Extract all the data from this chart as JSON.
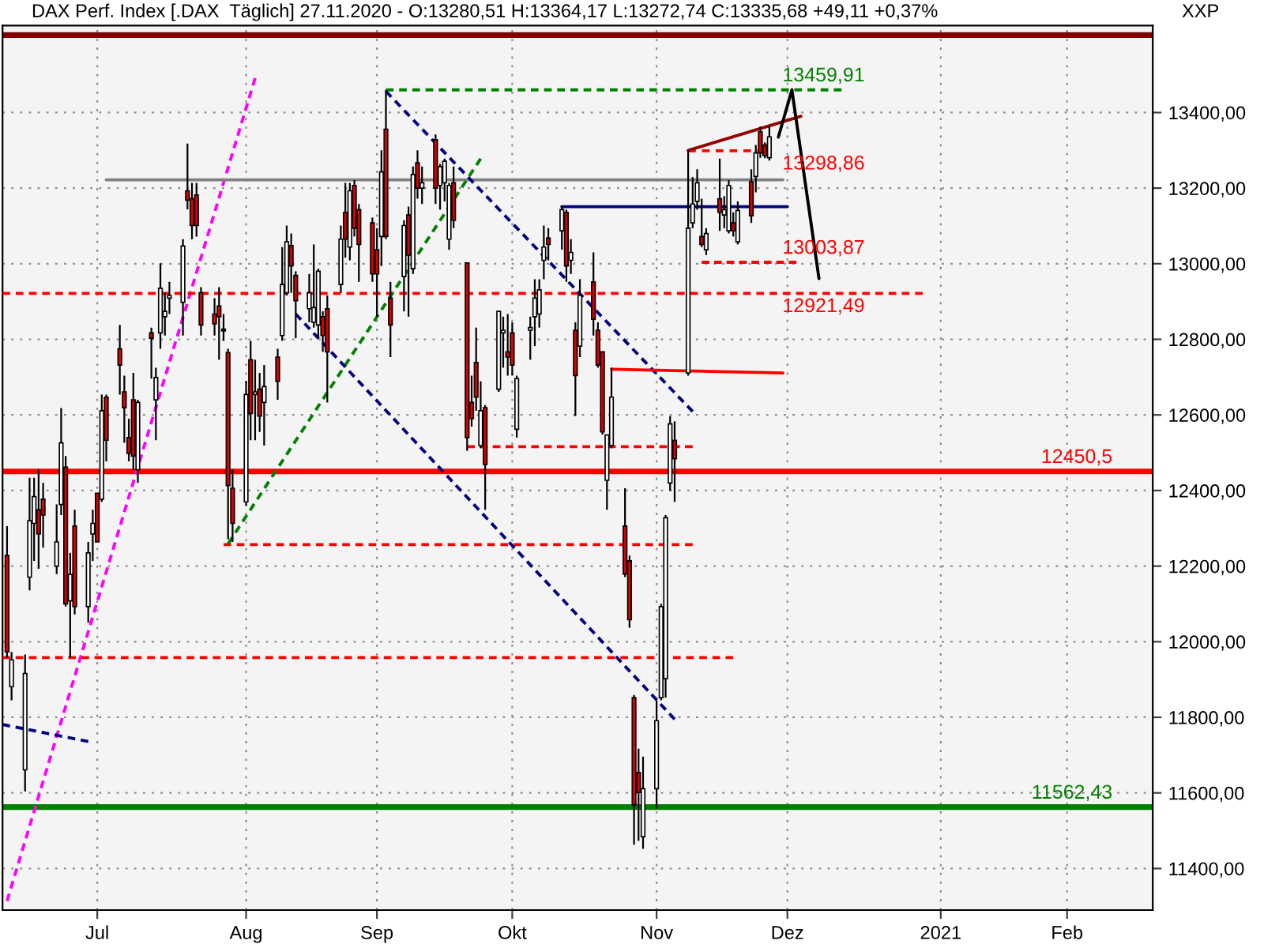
{
  "chart_data": {
    "type": "candlestick",
    "title": "DAX Perf. Index [.DAX  Täglich] 27.11.2020 - O:13280,51 H:13364,17 L:13272,74 C:13335,68 +49,11 +0,37%",
    "x": [
      "2020-06-11",
      "2020-06-12",
      "2020-06-15",
      "2020-06-16",
      "2020-06-17",
      "2020-06-18",
      "2020-06-19",
      "2020-06-22",
      "2020-06-23",
      "2020-06-24",
      "2020-06-25",
      "2020-06-26",
      "2020-06-29",
      "2020-06-30",
      "2020-07-01",
      "2020-07-02",
      "2020-07-03",
      "2020-07-06",
      "2020-07-07",
      "2020-07-08",
      "2020-07-09",
      "2020-07-10",
      "2020-07-13",
      "2020-07-14",
      "2020-07-15",
      "2020-07-16",
      "2020-07-17",
      "2020-07-20",
      "2020-07-21",
      "2020-07-22",
      "2020-07-23",
      "2020-07-24",
      "2020-07-27",
      "2020-07-28",
      "2020-07-29",
      "2020-07-30",
      "2020-07-31",
      "2020-08-03",
      "2020-08-04",
      "2020-08-05",
      "2020-08-06",
      "2020-08-07",
      "2020-08-10",
      "2020-08-11",
      "2020-08-12",
      "2020-08-13",
      "2020-08-14",
      "2020-08-17",
      "2020-08-18",
      "2020-08-19",
      "2020-08-20",
      "2020-08-21",
      "2020-08-24",
      "2020-08-25",
      "2020-08-26",
      "2020-08-27",
      "2020-08-28",
      "2020-08-31",
      "2020-09-01",
      "2020-09-02",
      "2020-09-03",
      "2020-09-04",
      "2020-09-07",
      "2020-09-08",
      "2020-09-09",
      "2020-09-10",
      "2020-09-11",
      "2020-09-14",
      "2020-09-15",
      "2020-09-16",
      "2020-09-17",
      "2020-09-18",
      "2020-09-21",
      "2020-09-22",
      "2020-09-23",
      "2020-09-24",
      "2020-09-25",
      "2020-09-28",
      "2020-09-29",
      "2020-09-30",
      "2020-10-01",
      "2020-10-02",
      "2020-10-05",
      "2020-10-06",
      "2020-10-07",
      "2020-10-08",
      "2020-10-09",
      "2020-10-12",
      "2020-10-13",
      "2020-10-14",
      "2020-10-15",
      "2020-10-16",
      "2020-10-19",
      "2020-10-20",
      "2020-10-21",
      "2020-10-22",
      "2020-10-23",
      "2020-10-26",
      "2020-10-27",
      "2020-10-28",
      "2020-10-29",
      "2020-10-30",
      "2020-11-02",
      "2020-11-03",
      "2020-11-04",
      "2020-11-05",
      "2020-11-06",
      "2020-11-09",
      "2020-11-10",
      "2020-11-11",
      "2020-11-12",
      "2020-11-13",
      "2020-11-16",
      "2020-11-17",
      "2020-11-18",
      "2020-11-19",
      "2020-11-20",
      "2020-11-23",
      "2020-11-24",
      "2020-11-25",
      "2020-11-26",
      "2020-11-27"
    ],
    "ohlc": [
      [
        12228,
        12306,
        11958,
        11973
      ],
      [
        11881,
        11973,
        11845,
        11952
      ],
      [
        11661,
        11966,
        11604,
        11916
      ],
      [
        12171,
        12434,
        12136,
        12320
      ],
      [
        12313,
        12434,
        12214,
        12384
      ],
      [
        12349,
        12455,
        12193,
        12285
      ],
      [
        12377,
        12420,
        12249,
        12335
      ],
      [
        12200,
        12363,
        12179,
        12264
      ],
      [
        12363,
        12618,
        12335,
        12526
      ],
      [
        12462,
        12491,
        12093,
        12100
      ],
      [
        12108,
        12235,
        11959,
        12178
      ],
      [
        12306,
        12349,
        12072,
        12093
      ],
      [
        12093,
        12264,
        12051,
        12235
      ],
      [
        12285,
        12349,
        12214,
        12313
      ],
      [
        12393,
        12393,
        12264,
        12264
      ],
      [
        12377,
        12654,
        12370,
        12611
      ],
      [
        12647,
        12654,
        12477,
        12533
      ],
      [
        12775,
        12838,
        12654,
        12732
      ],
      [
        12661,
        12704,
        12526,
        12619
      ],
      [
        12540,
        12590,
        12477,
        12498
      ],
      [
        12640,
        12711,
        12455,
        12491
      ],
      [
        12455,
        12640,
        12420,
        12633
      ],
      [
        12817,
        12831,
        12696,
        12803
      ],
      [
        12640,
        12725,
        12533,
        12699
      ],
      [
        12817,
        13001,
        12775,
        12935
      ],
      [
        12860,
        12923,
        12810,
        12874
      ],
      [
        12909,
        12952,
        12867,
        12916
      ],
      [
        12898,
        13065,
        12810,
        13047
      ],
      [
        13193,
        13318,
        13144,
        13168
      ],
      [
        13172,
        13214,
        13065,
        13101
      ],
      [
        13182,
        13214,
        13072,
        13101
      ],
      [
        12923,
        12938,
        12810,
        12838
      ],
      [
        12867,
        12909,
        12810,
        12841
      ],
      [
        12888,
        12938,
        12746,
        12860
      ],
      [
        12827,
        12867,
        12796,
        12822
      ],
      [
        12765,
        12775,
        12271,
        12413
      ],
      [
        12406,
        12455,
        12264,
        12313
      ],
      [
        12370,
        12690,
        12360,
        12654
      ],
      [
        12746,
        12796,
        12533,
        12604
      ],
      [
        12654,
        12746,
        12533,
        12661
      ],
      [
        12668,
        12711,
        12555,
        12597
      ],
      [
        12633,
        12732,
        12519,
        12675
      ],
      [
        12753,
        12775,
        12640,
        12689
      ],
      [
        12810,
        13044,
        12796,
        12945
      ],
      [
        12923,
        13101,
        12916,
        13058
      ],
      [
        13048,
        13080,
        12923,
        12994
      ],
      [
        12969,
        12980,
        12803,
        12902
      ],
      [
        12881,
        12973,
        12845,
        12923
      ],
      [
        12845,
        13051,
        12831,
        12884
      ],
      [
        12838,
        12987,
        12803,
        12980
      ],
      [
        12860,
        12874,
        12767,
        12810
      ],
      [
        12881,
        12916,
        12633,
        12767
      ],
      [
        12945,
        13101,
        12923,
        13065
      ],
      [
        13136,
        13214,
        13016,
        13065
      ],
      [
        13044,
        13214,
        13009,
        13193
      ],
      [
        13207,
        13221,
        13072,
        13094
      ],
      [
        13143,
        13158,
        12952,
        13051
      ],
      [
        13108,
        13122,
        12952,
        12973
      ],
      [
        13037,
        13094,
        12860,
        12973
      ],
      [
        13072,
        13300,
        12994,
        13243
      ],
      [
        13356,
        13460,
        13065,
        13072
      ],
      [
        12909,
        12952,
        12753,
        12838
      ],
      [
        12966,
        13115,
        12874,
        13101
      ],
      [
        13129,
        13151,
        12860,
        13023
      ],
      [
        12987,
        13257,
        12973,
        13236
      ],
      [
        13267,
        13300,
        13172,
        13200
      ],
      [
        13200,
        13257,
        13158,
        13214
      ],
      [
        13328,
        13342,
        13158,
        13200
      ],
      [
        13207,
        13264,
        13143,
        13257
      ],
      [
        13214,
        13278,
        13165,
        13271
      ],
      [
        13065,
        13214,
        13037,
        13207
      ],
      [
        13214,
        13257,
        13094,
        13115
      ],
      [
        13002,
        13002,
        12505,
        12540
      ],
      [
        12633,
        12704,
        12569,
        12590
      ],
      [
        12739,
        12831,
        12611,
        12647
      ],
      [
        12519,
        12689,
        12512,
        12611
      ],
      [
        12619,
        12626,
        12349,
        12469
      ],
      [
        12668,
        12874,
        12661,
        12874
      ],
      [
        12817,
        12860,
        12725,
        12824
      ],
      [
        12767,
        12867,
        12704,
        12753
      ],
      [
        12817,
        12845,
        12704,
        12732
      ],
      [
        12562,
        12704,
        12540,
        12696
      ],
      [
        12824,
        12860,
        12746,
        12831
      ],
      [
        12860,
        12959,
        12782,
        12909
      ],
      [
        12867,
        12959,
        12831,
        12931
      ],
      [
        13009,
        13101,
        12959,
        13044
      ],
      [
        13068,
        13094,
        13009,
        13051
      ],
      [
        13087,
        13153,
        13037,
        13143
      ],
      [
        13136,
        13143,
        12952,
        12994
      ],
      [
        13009,
        13065,
        12973,
        13030
      ],
      [
        12824,
        12845,
        12597,
        12704
      ],
      [
        12782,
        12959,
        12753,
        12916
      ],
      [
        12952,
        13030,
        12810,
        12853
      ],
      [
        12824,
        12845,
        12725,
        12732
      ],
      [
        12767,
        12767,
        12548,
        12555
      ],
      [
        12427,
        12548,
        12349,
        12547
      ],
      [
        12519,
        12725,
        12512,
        12647
      ],
      [
        12306,
        12406,
        12171,
        12179
      ],
      [
        12214,
        12228,
        12037,
        12058
      ],
      [
        11852,
        11859,
        11463,
        11568
      ],
      [
        11654,
        11717,
        11473,
        11601
      ],
      [
        11484,
        11696,
        11452,
        11611
      ],
      [
        11611,
        11845,
        11558,
        11791
      ],
      [
        11852,
        12100,
        11845,
        12093
      ],
      [
        11902,
        12335,
        11852,
        12328
      ],
      [
        12420,
        12597,
        12399,
        12576
      ],
      [
        12533,
        12583,
        12370,
        12484
      ],
      [
        12711,
        13299,
        12704,
        13094
      ],
      [
        13108,
        13229,
        13094,
        13158
      ],
      [
        13165,
        13250,
        13143,
        13214
      ],
      [
        13072,
        13172,
        13044,
        13051
      ],
      [
        13037,
        13094,
        13023,
        13080
      ],
      [
        13172,
        13278,
        13087,
        13136
      ],
      [
        13129,
        13179,
        13094,
        13143
      ],
      [
        13087,
        13221,
        13080,
        13207
      ],
      [
        13108,
        13136,
        13072,
        13087
      ],
      [
        13058,
        13165,
        13051,
        13141
      ],
      [
        13217,
        13250,
        13108,
        13127
      ],
      [
        13231,
        13314,
        13189,
        13293
      ],
      [
        13349,
        13363,
        13280,
        13293
      ],
      [
        13314,
        13321,
        13279,
        13286
      ],
      [
        13280.51,
        13364.17,
        13272.74,
        13335.68
      ]
    ],
    "colors": [
      "#e00000",
      "#ffffff",
      "#ffffff",
      "#ffffff",
      "#ffffff",
      "#e00000",
      "#e00000",
      "#ffffff",
      "#ffffff",
      "#e00000",
      "#ffffff",
      "#e00000",
      "#ffffff",
      "#ffffff",
      "#e00000",
      "#ffffff",
      "#e00000",
      "#e00000",
      "#e00000",
      "#e00000",
      "#e00000",
      "#ffffff",
      "#e00000",
      "#ffffff",
      "#ffffff",
      "#ffffff",
      "#ffffff",
      "#ffffff",
      "#e00000",
      "#e00000",
      "#e00000",
      "#e00000",
      "#e00000",
      "#e00000",
      "#e00000",
      "#e00000",
      "#e00000",
      "#ffffff",
      "#e00000",
      "#ffffff",
      "#e00000",
      "#ffffff",
      "#e00000",
      "#ffffff",
      "#ffffff",
      "#e00000",
      "#e00000",
      "#ffffff",
      "#ffffff",
      "#ffffff",
      "#e00000",
      "#e00000",
      "#ffffff",
      "#e00000",
      "#ffffff",
      "#e00000",
      "#e00000",
      "#e00000",
      "#e00000",
      "#ffffff",
      "#e00000",
      "#e00000",
      "#ffffff",
      "#e00000",
      "#ffffff",
      "#e00000",
      "#ffffff",
      "#e00000",
      "#ffffff",
      "#ffffff",
      "#ffffff",
      "#e00000",
      "#e00000",
      "#e00000",
      "#e00000",
      "#ffffff",
      "#e00000",
      "#ffffff",
      "#ffffff",
      "#e00000",
      "#e00000",
      "#ffffff",
      "#ffffff",
      "#ffffff",
      "#ffffff",
      "#ffffff",
      "#e00000",
      "#ffffff",
      "#e00000",
      "#ffffff",
      "#e00000",
      "#ffffff",
      "#e00000",
      "#e00000",
      "#e00000",
      "#ffffff",
      "#ffffff",
      "#e00000",
      "#e00000",
      "#e00000",
      "#e00000",
      "#ffffff",
      "#ffffff",
      "#ffffff",
      "#ffffff",
      "#ffffff",
      "#e00000",
      "#ffffff",
      "#ffffff",
      "#ffffff",
      "#e00000",
      "#ffffff",
      "#e00000",
      "#ffffff",
      "#ffffff",
      "#e00000",
      "#ffffff",
      "#e00000",
      "#ffffff",
      "#e00000",
      "#e00000",
      "#ffffff"
    ],
    "series": [
      {
        "type": "line",
        "x": [
          "2020-06-11",
          "2020-08-05"
        ],
        "values": [
          11314,
          13491
        ],
        "color": "#ff00ff",
        "line_style": "dashed"
      },
      {
        "type": "line",
        "x": [
          "2020-06-10",
          "2020-06-29"
        ],
        "values": [
          11781,
          11736
        ],
        "color": "#000080",
        "line_style": "dashed"
      },
      {
        "type": "line",
        "x": [
          "2020-07-03",
          "2020-11-30"
        ],
        "values": [
          13222,
          13222
        ],
        "color": "#808080",
        "line_style": "solid"
      },
      {
        "type": "line",
        "x": [
          "2020-06-10",
          "2020-12-31"
        ],
        "values": [
          12921.49,
          12921.49
        ],
        "color": "#ff0000",
        "line_style": "dashed"
      },
      {
        "type": "line",
        "x": [
          "2020-06-10",
          "2020-11-19"
        ],
        "values": [
          11958,
          11958
        ],
        "color": "#ff0000",
        "line_style": "dashed"
      },
      {
        "type": "line",
        "x": [
          "2020-07-29",
          "2020-11-10"
        ],
        "values": [
          12257,
          12257
        ],
        "color": "#ff0000",
        "line_style": "dashed"
      },
      {
        "type": "line",
        "x": [
          "2020-09-03",
          "2020-12-13"
        ],
        "values": [
          13459.91,
          13459.91
        ],
        "color": "#008000",
        "line_style": "dashed"
      },
      {
        "type": "line",
        "x": [
          "2020-07-30",
          "2020-09-24"
        ],
        "values": [
          12259,
          13278
        ],
        "color": "#008000",
        "line_style": "dashed"
      },
      {
        "type": "line",
        "x": [
          "2020-09-03",
          "2020-11-10"
        ],
        "values": [
          13456,
          12609
        ],
        "color": "#000080",
        "line_style": "dashed"
      },
      {
        "type": "line",
        "x": [
          "2020-08-14",
          "2020-11-06"
        ],
        "values": [
          12867,
          11795
        ],
        "color": "#000080",
        "line_style": "dashed"
      },
      {
        "type": "line",
        "x": [
          "2020-10-12",
          "2020-12-01"
        ],
        "values": [
          13151,
          13151
        ],
        "color": "#000080",
        "line_style": "solid"
      },
      {
        "type": "line",
        "x": [
          "2020-10-23",
          "2020-11-30"
        ],
        "values": [
          12721,
          12711
        ],
        "color": "#ff0000",
        "line_style": "solid"
      },
      {
        "type": "line",
        "x": [
          "2020-09-21",
          "2020-11-10"
        ],
        "values": [
          12516,
          12516
        ],
        "color": "#ff0000",
        "line_style": "dashed"
      },
      {
        "type": "line",
        "x": [
          "2020-11-09",
          "2020-11-26"
        ],
        "values": [
          13298.86,
          13298.86
        ],
        "color": "#ff0000",
        "line_style": "dashed"
      },
      {
        "type": "line",
        "x": [
          "2020-11-12",
          "2020-12-03"
        ],
        "values": [
          13003.87,
          13003.87
        ],
        "color": "#ff0000",
        "line_style": "dashed"
      },
      {
        "type": "line",
        "x": [
          "2020-11-09",
          "2020-12-04"
        ],
        "values": [
          13300,
          13390
        ],
        "color": "#990000",
        "line_style": "solid"
      },
      {
        "type": "line",
        "x": [
          "2020-11-29",
          "2020-12-02",
          "2020-12-08"
        ],
        "values": [
          13335,
          13460,
          12961
        ],
        "color": "#000000",
        "line_style": "solid"
      }
    ],
    "ref_lines": [
      {
        "axis": "y",
        "value": 13605,
        "color": "#800000"
      },
      {
        "axis": "y",
        "value": 12450.5,
        "label": "12450,5",
        "color": "#ff0000"
      },
      {
        "axis": "y",
        "value": 11562.43,
        "label": "11562,43",
        "color": "#008000"
      }
    ],
    "annotations": [
      "XXP",
      {
        "text": "13459,91",
        "x": "2020-11-26",
        "y": 13459.91
      },
      {
        "text": "13298,86",
        "x": "2020-11-26",
        "y": 13298.86
      },
      {
        "text": "13003,87",
        "x": "2020-11-26",
        "y": 13003.87
      },
      {
        "text": "12921,49",
        "x": "2020-11-26",
        "y": 12921.49
      }
    ],
    "xlim": [
      "2020-06-10",
      "2021-02-20"
    ],
    "xticks": [
      {
        "value": "2020-07-01",
        "label": "Jul"
      },
      {
        "value": "2020-08-03",
        "label": "Aug"
      },
      {
        "value": "2020-09-01",
        "label": "Sep"
      },
      {
        "value": "2020-10-01",
        "label": "Okt"
      },
      {
        "value": "2020-11-02",
        "label": "Nov"
      },
      {
        "value": "2020-12-01",
        "label": "Dez"
      },
      {
        "value": "2021-01-04",
        "label": "2021"
      },
      {
        "value": "2021-02-01",
        "label": "Feb"
      }
    ],
    "ylim": [
      11290,
      13630
    ],
    "yticks": [
      {
        "value": 11400,
        "label": "11400,00"
      },
      {
        "value": 11600,
        "label": "11600,00"
      },
      {
        "value": 11800,
        "label": "11800,00"
      },
      {
        "value": 12000,
        "label": "12000,00"
      },
      {
        "value": 12200,
        "label": "12200,00"
      },
      {
        "value": 12400,
        "label": "12400,00"
      },
      {
        "value": 12600,
        "label": "12600,00"
      },
      {
        "value": 12800,
        "label": "12800,00"
      },
      {
        "value": 13000,
        "label": "13000,00"
      },
      {
        "value": 13200,
        "label": "13200,00"
      },
      {
        "value": 13400,
        "label": "13400,00"
      }
    ],
    "grid": true
  }
}
